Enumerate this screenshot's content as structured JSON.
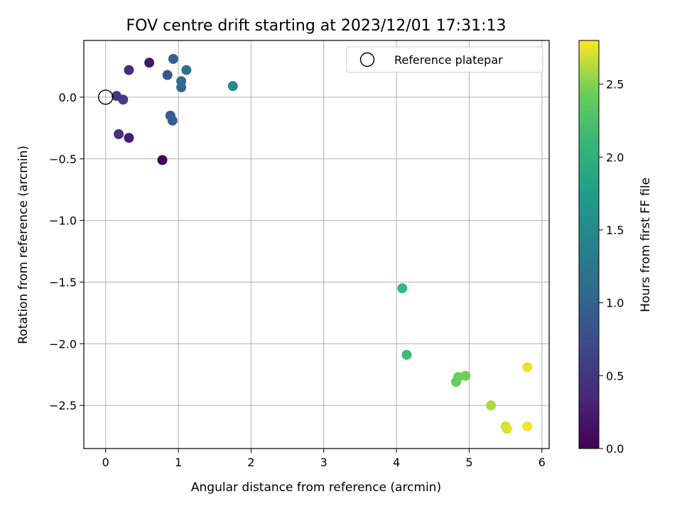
{
  "chart_data": {
    "type": "scatter",
    "title": "FOV centre drift starting at 2023/12/01 17:31:13",
    "xlabel": "Angular distance from reference (arcmin)",
    "ylabel": "Rotation from reference (arcmin)",
    "xlim": [
      -0.3,
      6.1
    ],
    "ylim": [
      -2.85,
      0.46
    ],
    "x_ticks": [
      0,
      1,
      2,
      3,
      4,
      5,
      6
    ],
    "x_tick_labels": [
      "0",
      "1",
      "2",
      "3",
      "4",
      "5",
      "6"
    ],
    "y_ticks": [
      0.0,
      -0.5,
      -1.0,
      -1.5,
      -2.0,
      -2.5
    ],
    "y_tick_labels": [
      "0.0",
      "−0.5",
      "−1.0",
      "−1.5",
      "−2.0",
      "−2.5"
    ],
    "grid": true,
    "legend": {
      "placement": "top-right",
      "entries": [
        "Reference platepar"
      ]
    },
    "reference_point": {
      "x": 0.0,
      "y": 0.0
    },
    "colorbar": {
      "label": "Hours from first FF file",
      "range": [
        0.0,
        2.8
      ],
      "ticks": [
        0.0,
        0.5,
        1.0,
        1.5,
        2.0,
        2.5
      ],
      "tick_labels": [
        "0.0",
        "0.5",
        "1.0",
        "1.5",
        "2.0",
        "2.5"
      ],
      "colormap": "viridis"
    },
    "points": [
      {
        "x": 0.78,
        "y": -0.51,
        "hours": 0.0
      },
      {
        "x": 0.6,
        "y": 0.28,
        "hours": 0.2
      },
      {
        "x": 0.32,
        "y": -0.33,
        "hours": 0.25
      },
      {
        "x": 0.32,
        "y": 0.22,
        "hours": 0.4
      },
      {
        "x": 0.18,
        "y": -0.3,
        "hours": 0.45
      },
      {
        "x": 0.15,
        "y": 0.01,
        "hours": 0.5
      },
      {
        "x": 0.24,
        "y": -0.02,
        "hours": 0.55
      },
      {
        "x": 0.85,
        "y": 0.18,
        "hours": 0.85
      },
      {
        "x": 0.89,
        "y": -0.15,
        "hours": 0.9
      },
      {
        "x": 0.92,
        "y": -0.19,
        "hours": 0.95
      },
      {
        "x": 0.93,
        "y": 0.31,
        "hours": 1.0
      },
      {
        "x": 1.04,
        "y": 0.08,
        "hours": 1.05
      },
      {
        "x": 1.04,
        "y": 0.13,
        "hours": 1.1
      },
      {
        "x": 1.11,
        "y": 0.22,
        "hours": 1.15
      },
      {
        "x": 1.75,
        "y": 0.09,
        "hours": 1.5
      },
      {
        "x": 4.08,
        "y": -1.55,
        "hours": 2.1
      },
      {
        "x": 4.14,
        "y": -2.09,
        "hours": 2.15
      },
      {
        "x": 4.82,
        "y": -2.31,
        "hours": 2.4
      },
      {
        "x": 4.85,
        "y": -2.27,
        "hours": 2.42
      },
      {
        "x": 4.95,
        "y": -2.26,
        "hours": 2.45
      },
      {
        "x": 5.3,
        "y": -2.5,
        "hours": 2.6
      },
      {
        "x": 5.5,
        "y": -2.67,
        "hours": 2.7
      },
      {
        "x": 5.52,
        "y": -2.69,
        "hours": 2.72
      },
      {
        "x": 5.8,
        "y": -2.19,
        "hours": 2.75
      },
      {
        "x": 5.8,
        "y": -2.67,
        "hours": 2.78
      }
    ]
  }
}
